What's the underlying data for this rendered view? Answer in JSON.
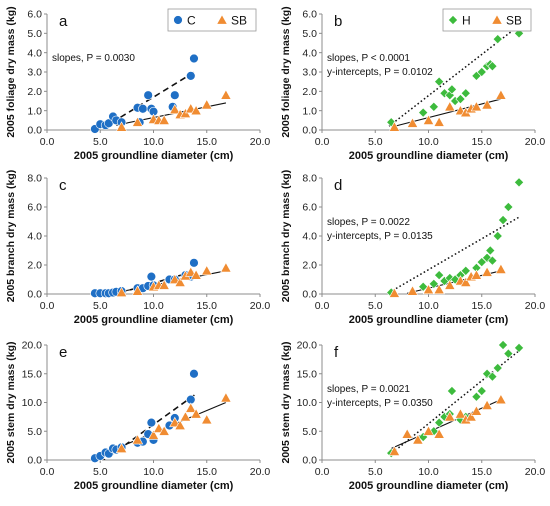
{
  "colors": {
    "C": "#1f6fc5",
    "SB": "#f08c32",
    "H": "#3dbb3d",
    "axis": "#8c8c8c"
  },
  "chart_data": [
    {
      "id": "a",
      "type": "scatter",
      "panel_label": "a",
      "xlabel": "2005 groundline diameter (cm)",
      "ylabel": "2005 foliage dry mass (kg)",
      "xlim": [
        0.0,
        20.0
      ],
      "ylim": [
        0.0,
        6.0
      ],
      "xticks": [
        "0.0",
        "5.0",
        "10.0",
        "15.0",
        "20.0"
      ],
      "yticks": [
        "0.0",
        "1.0",
        "2.0",
        "3.0",
        "4.0",
        "5.0",
        "6.0"
      ],
      "annotations": [
        "slopes, P = 0.0030"
      ],
      "legend": {
        "position": "top-right",
        "entries": [
          {
            "label": "C",
            "series": "C"
          },
          {
            "label": "SB",
            "series": "SB"
          }
        ]
      },
      "series": [
        {
          "name": "C",
          "marker": "circle",
          "points": [
            [
              4.5,
              0.05
            ],
            [
              5.0,
              0.3
            ],
            [
              5.5,
              0.25
            ],
            [
              5.8,
              0.35
            ],
            [
              6.2,
              0.7
            ],
            [
              6.5,
              0.5
            ],
            [
              7.0,
              0.4
            ],
            [
              8.5,
              1.15
            ],
            [
              8.7,
              0.4
            ],
            [
              9.0,
              1.1
            ],
            [
              9.5,
              1.8
            ],
            [
              9.8,
              1.1
            ],
            [
              10.0,
              0.95
            ],
            [
              11.8,
              1.2
            ],
            [
              12.0,
              1.8
            ],
            [
              13.5,
              2.8
            ],
            [
              13.8,
              3.7
            ]
          ]
        },
        {
          "name": "SB",
          "marker": "triangle",
          "points": [
            [
              7.0,
              0.15
            ],
            [
              8.5,
              0.4
            ],
            [
              10.0,
              0.55
            ],
            [
              10.5,
              0.5
            ],
            [
              11.0,
              0.5
            ],
            [
              12.0,
              1.05
            ],
            [
              12.5,
              0.8
            ],
            [
              13.0,
              0.85
            ],
            [
              13.5,
              1.1
            ],
            [
              14.0,
              1.0
            ],
            [
              15.0,
              1.3
            ],
            [
              16.8,
              1.8
            ]
          ]
        }
      ],
      "trendlines": [
        {
          "series": "C",
          "style": "dashed",
          "from": [
            4.5,
            -0.15
          ],
          "to": [
            14.0,
            3.05
          ]
        },
        {
          "series": "SB",
          "style": "solid",
          "from": [
            6.5,
            0.25
          ],
          "to": [
            16.8,
            1.4
          ]
        }
      ]
    },
    {
      "id": "b",
      "type": "scatter",
      "panel_label": "b",
      "xlabel": "2005 groundline diameter (cm)",
      "ylabel": "2005 foliage dry mass (kg)",
      "xlim": [
        0.0,
        20.0
      ],
      "ylim": [
        0.0,
        6.0
      ],
      "xticks": [
        "0.0",
        "5.0",
        "10.0",
        "15.0",
        "20.0"
      ],
      "yticks": [
        "0.0",
        "1.0",
        "2.0",
        "3.0",
        "4.0",
        "5.0",
        "6.0"
      ],
      "annotations": [
        "slopes, P < 0.0001",
        "y-intercepts, P = 0.0102"
      ],
      "legend": {
        "position": "top-right",
        "entries": [
          {
            "label": "H",
            "series": "H"
          },
          {
            "label": "SB",
            "series": "SB"
          }
        ]
      },
      "series": [
        {
          "name": "H",
          "marker": "diamond",
          "points": [
            [
              6.5,
              0.4
            ],
            [
              9.5,
              0.9
            ],
            [
              10.5,
              1.2
            ],
            [
              11.0,
              2.5
            ],
            [
              11.5,
              1.9
            ],
            [
              12.0,
              1.8
            ],
            [
              12.2,
              2.1
            ],
            [
              12.5,
              1.5
            ],
            [
              13.0,
              1.6
            ],
            [
              13.5,
              1.9
            ],
            [
              14.5,
              2.8
            ],
            [
              15.0,
              3.0
            ],
            [
              15.5,
              3.3
            ],
            [
              15.8,
              3.4
            ],
            [
              16.0,
              3.3
            ],
            [
              16.5,
              4.7
            ],
            [
              17.5,
              5.5
            ],
            [
              18.5,
              5.0
            ]
          ]
        },
        {
          "name": "SB",
          "marker": "triangle",
          "points": [
            [
              6.8,
              0.15
            ],
            [
              8.5,
              0.35
            ],
            [
              10.0,
              0.5
            ],
            [
              11.0,
              0.4
            ],
            [
              12.0,
              1.2
            ],
            [
              13.0,
              1.0
            ],
            [
              13.5,
              0.9
            ],
            [
              14.0,
              1.1
            ],
            [
              14.5,
              1.2
            ],
            [
              15.5,
              1.3
            ],
            [
              16.8,
              1.8
            ]
          ]
        }
      ],
      "trendlines": [
        {
          "series": "H",
          "style": "dotted",
          "from": [
            6.3,
            0.2
          ],
          "to": [
            18.5,
            5.4
          ]
        },
        {
          "series": "SB",
          "style": "solid",
          "from": [
            6.5,
            0.15
          ],
          "to": [
            16.8,
            1.6
          ]
        }
      ]
    },
    {
      "id": "c",
      "type": "scatter",
      "panel_label": "c",
      "xlabel": "2005 groundline diameter (cm)",
      "ylabel": "2005 branch dry mass (kg)",
      "xlim": [
        0.0,
        20.0
      ],
      "ylim": [
        0.0,
        8.0
      ],
      "xticks": [
        "0.0",
        "5.0",
        "10.0",
        "15.0",
        "20.0"
      ],
      "yticks": [
        "0.0",
        "2.0",
        "4.0",
        "6.0",
        "8.0"
      ],
      "annotations": [],
      "legend": null,
      "series": [
        {
          "name": "C",
          "marker": "circle",
          "points": [
            [
              4.5,
              0.05
            ],
            [
              5.0,
              0.05
            ],
            [
              5.5,
              0.05
            ],
            [
              5.8,
              0.05
            ],
            [
              6.2,
              0.1
            ],
            [
              6.5,
              0.15
            ],
            [
              7.0,
              0.2
            ],
            [
              8.5,
              0.4
            ],
            [
              9.0,
              0.4
            ],
            [
              9.5,
              0.55
            ],
            [
              9.8,
              1.2
            ],
            [
              10.0,
              0.6
            ],
            [
              11.5,
              1.0
            ],
            [
              12.0,
              1.0
            ],
            [
              13.0,
              1.3
            ],
            [
              13.5,
              1.2
            ],
            [
              13.8,
              2.15
            ]
          ]
        },
        {
          "name": "SB",
          "marker": "triangle",
          "points": [
            [
              7.0,
              0.1
            ],
            [
              8.5,
              0.2
            ],
            [
              10.0,
              0.5
            ],
            [
              10.5,
              0.6
            ],
            [
              11.0,
              0.6
            ],
            [
              12.0,
              1.0
            ],
            [
              12.5,
              0.8
            ],
            [
              13.0,
              1.25
            ],
            [
              13.5,
              1.5
            ],
            [
              14.0,
              1.3
            ],
            [
              15.0,
              1.6
            ],
            [
              16.8,
              1.8
            ]
          ]
        }
      ],
      "trendlines": [
        {
          "series": "C",
          "style": "dashed",
          "from": [
            6.0,
            -0.1
          ],
          "to": [
            14.0,
            1.6
          ]
        },
        {
          "series": "SB",
          "style": "solid",
          "from": [
            6.5,
            0.1
          ],
          "to": [
            16.8,
            1.6
          ]
        }
      ]
    },
    {
      "id": "d",
      "type": "scatter",
      "panel_label": "d",
      "xlabel": "2005 groundline diameter (cm)",
      "ylabel": "2005 branch dry mass (kg)",
      "xlim": [
        0.0,
        20.0
      ],
      "ylim": [
        0.0,
        8.0
      ],
      "xticks": [
        "0.0",
        "5.0",
        "10.0",
        "15.0",
        "20.0"
      ],
      "yticks": [
        "0.0",
        "2.0",
        "4.0",
        "6.0",
        "8.0"
      ],
      "annotations": [
        "slopes, P = 0.0022",
        "y-intercepts, P = 0.0135"
      ],
      "legend": null,
      "series": [
        {
          "name": "H",
          "marker": "diamond",
          "points": [
            [
              6.5,
              0.1
            ],
            [
              9.5,
              0.5
            ],
            [
              10.5,
              0.7
            ],
            [
              11.0,
              1.3
            ],
            [
              11.5,
              0.9
            ],
            [
              12.0,
              1.1
            ],
            [
              12.5,
              1.0
            ],
            [
              13.0,
              1.3
            ],
            [
              13.5,
              1.6
            ],
            [
              14.5,
              1.8
            ],
            [
              15.0,
              2.2
            ],
            [
              15.5,
              2.5
            ],
            [
              15.8,
              3.0
            ],
            [
              16.0,
              2.3
            ],
            [
              16.5,
              4.0
            ],
            [
              17.0,
              5.1
            ],
            [
              17.5,
              6.0
            ],
            [
              18.5,
              7.7
            ]
          ]
        },
        {
          "name": "SB",
          "marker": "triangle",
          "points": [
            [
              6.8,
              0.05
            ],
            [
              8.5,
              0.2
            ],
            [
              10.0,
              0.3
            ],
            [
              11.0,
              0.3
            ],
            [
              12.0,
              0.6
            ],
            [
              13.0,
              0.9
            ],
            [
              13.5,
              0.8
            ],
            [
              14.0,
              1.2
            ],
            [
              14.5,
              1.3
            ],
            [
              15.5,
              1.5
            ],
            [
              16.8,
              1.7
            ]
          ]
        }
      ],
      "trendlines": [
        {
          "series": "H",
          "style": "dotted",
          "from": [
            6.3,
            0.1
          ],
          "to": [
            18.5,
            5.3
          ]
        },
        {
          "series": "SB",
          "style": "solid",
          "from": [
            8.0,
            0.05
          ],
          "to": [
            16.8,
            1.6
          ]
        }
      ]
    },
    {
      "id": "e",
      "type": "scatter",
      "panel_label": "e",
      "xlabel": "2005 groundline diameter (cm)",
      "ylabel": "2005 stem dry mass (kg)",
      "xlim": [
        0.0,
        20.0
      ],
      "ylim": [
        0.0,
        20.0
      ],
      "xticks": [
        "0.0",
        "5.0",
        "10.0",
        "15.0",
        "20.0"
      ],
      "yticks": [
        "0.0",
        "5.0",
        "10.0",
        "15.0",
        "20.0"
      ],
      "annotations": [],
      "legend": null,
      "series": [
        {
          "name": "C",
          "marker": "circle",
          "points": [
            [
              4.5,
              0.3
            ],
            [
              5.0,
              0.7
            ],
            [
              5.5,
              1.3
            ],
            [
              5.8,
              1.1
            ],
            [
              6.2,
              2.0
            ],
            [
              6.5,
              1.8
            ],
            [
              7.0,
              2.2
            ],
            [
              8.5,
              3.0
            ],
            [
              9.0,
              3.2
            ],
            [
              9.5,
              4.5
            ],
            [
              9.8,
              6.5
            ],
            [
              10.0,
              3.5
            ],
            [
              11.5,
              6.0
            ],
            [
              12.0,
              7.3
            ],
            [
              13.5,
              10.5
            ],
            [
              13.8,
              15.0
            ]
          ]
        },
        {
          "name": "SB",
          "marker": "triangle",
          "points": [
            [
              7.0,
              2.0
            ],
            [
              8.5,
              3.5
            ],
            [
              10.0,
              4.3
            ],
            [
              10.5,
              5.5
            ],
            [
              11.0,
              5.0
            ],
            [
              12.0,
              6.5
            ],
            [
              12.5,
              6.0
            ],
            [
              13.0,
              7.5
            ],
            [
              13.5,
              9.0
            ],
            [
              14.0,
              8.0
            ],
            [
              15.0,
              7.0
            ],
            [
              16.8,
              10.8
            ]
          ]
        }
      ],
      "trendlines": [
        {
          "series": "C",
          "style": "dashed",
          "from": [
            5.0,
            -0.5
          ],
          "to": [
            14.0,
            11.5
          ]
        },
        {
          "series": "SB",
          "style": "solid",
          "from": [
            6.5,
            2.0
          ],
          "to": [
            16.8,
            10.0
          ]
        }
      ]
    },
    {
      "id": "f",
      "type": "scatter",
      "panel_label": "f",
      "xlabel": "2005 groundline diameter (cm)",
      "ylabel": "2005 stem dry mass (kg)",
      "xlim": [
        0.0,
        20.0
      ],
      "ylim": [
        0.0,
        20.0
      ],
      "xticks": [
        "0.0",
        "5.0",
        "10.0",
        "15.0",
        "20.0"
      ],
      "yticks": [
        "0.0",
        "5.0",
        "10.0",
        "15.0",
        "20.0"
      ],
      "annotations": [
        "slopes, P = 0.0021",
        "y-intercepts, P = 0.0350"
      ],
      "legend": null,
      "series": [
        {
          "name": "H",
          "marker": "diamond",
          "points": [
            [
              6.5,
              1.2
            ],
            [
              9.5,
              4.0
            ],
            [
              10.5,
              5.0
            ],
            [
              11.0,
              6.5
            ],
            [
              11.5,
              7.5
            ],
            [
              12.0,
              8.0
            ],
            [
              12.2,
              12.0
            ],
            [
              13.0,
              7.0
            ],
            [
              13.5,
              7.5
            ],
            [
              14.5,
              11.0
            ],
            [
              15.0,
              12.0
            ],
            [
              15.5,
              15.0
            ],
            [
              16.0,
              14.5
            ],
            [
              16.5,
              16.0
            ],
            [
              17.0,
              20.0
            ],
            [
              17.5,
              18.5
            ],
            [
              18.5,
              19.5
            ]
          ]
        },
        {
          "name": "SB",
          "marker": "triangle",
          "points": [
            [
              6.8,
              1.5
            ],
            [
              8.0,
              4.5
            ],
            [
              9.0,
              3.5
            ],
            [
              10.0,
              5.0
            ],
            [
              11.0,
              4.5
            ],
            [
              12.0,
              7.5
            ],
            [
              13.0,
              8.0
            ],
            [
              13.5,
              7.0
            ],
            [
              14.0,
              7.5
            ],
            [
              14.5,
              8.5
            ],
            [
              15.5,
              9.5
            ],
            [
              16.8,
              10.5
            ]
          ]
        }
      ],
      "trendlines": [
        {
          "series": "H",
          "style": "dotted",
          "from": [
            6.3,
            0.8
          ],
          "to": [
            18.5,
            19.0
          ]
        },
        {
          "series": "SB",
          "style": "solid",
          "from": [
            6.5,
            2.0
          ],
          "to": [
            16.8,
            10.5
          ]
        }
      ]
    }
  ]
}
